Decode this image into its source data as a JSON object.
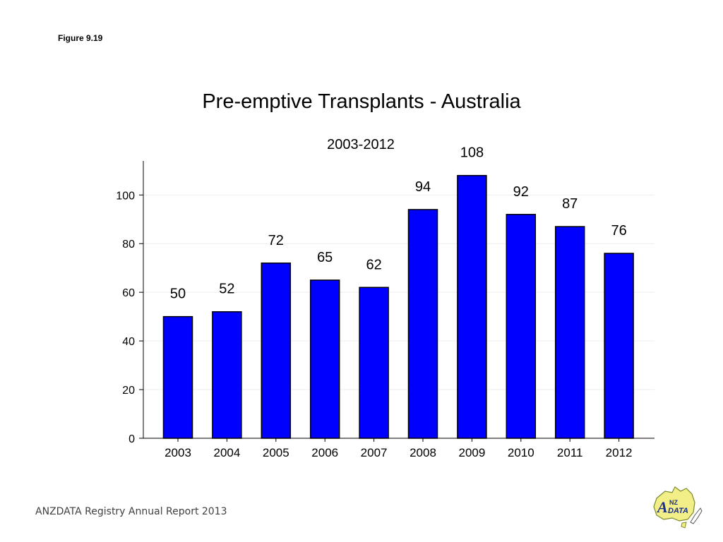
{
  "figure_label": "Figure 9.19",
  "footer": "ANZDATA Registry Annual Report 2013",
  "logo": {
    "text_a": "A",
    "text_nz": "NZ",
    "text_data": "DATA"
  },
  "colors": {
    "bar": "#0000FF",
    "bar_outline": "#000000",
    "grid": "#eeeeee"
  },
  "chart_data": {
    "type": "bar",
    "title": "Pre-emptive Transplants - Australia",
    "subtitle": "2003-2012",
    "categories": [
      "2003",
      "2004",
      "2005",
      "2006",
      "2007",
      "2008",
      "2009",
      "2010",
      "2011",
      "2012"
    ],
    "values": [
      50,
      52,
      72,
      65,
      62,
      94,
      108,
      92,
      87,
      76
    ],
    "data_labels": [
      "50",
      "52",
      "72",
      "65",
      "62",
      "94",
      "108",
      "92",
      "87",
      "76"
    ],
    "y_ticks": [
      0,
      20,
      40,
      60,
      80,
      100
    ],
    "ylim": [
      0,
      114
    ],
    "xlabel": "",
    "ylabel": "",
    "grid": true,
    "legend": "none"
  }
}
